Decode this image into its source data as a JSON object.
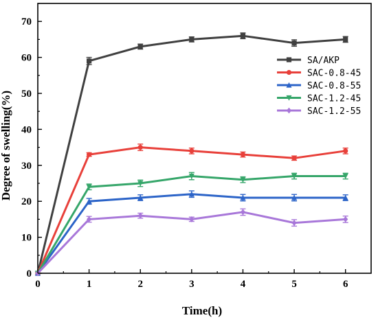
{
  "chart_data": {
    "type": "line",
    "xlabel": "Time(h)",
    "ylabel": "Degree of swelling(%)",
    "xlim": [
      0,
      6.5
    ],
    "ylim": [
      0,
      75
    ],
    "x_ticks": [
      "0",
      "1",
      "2",
      "3",
      "4",
      "5",
      "6"
    ],
    "y_ticks": [
      "0",
      "10",
      "20",
      "30",
      "40",
      "50",
      "60",
      "70"
    ],
    "x": [
      0,
      1,
      2,
      3,
      4,
      5,
      6
    ],
    "grid": false,
    "legend_position": "top-right",
    "series": [
      {
        "name": "SA/AKP",
        "color": "#404040",
        "marker": "square",
        "values": [
          0,
          59,
          63,
          65,
          66,
          64,
          65
        ],
        "errors": [
          0,
          1.0,
          0.7,
          0.7,
          0.8,
          0.9,
          0.8
        ]
      },
      {
        "name": "SAC-0.8-45",
        "color": "#e8403a",
        "marker": "circle",
        "values": [
          0,
          33,
          35,
          34,
          33,
          32,
          34
        ],
        "errors": [
          0,
          0.5,
          0.9,
          0.8,
          0.7,
          0.6,
          0.8
        ]
      },
      {
        "name": "SAC-0.8-55",
        "color": "#2c64c8",
        "marker": "triangle-up",
        "values": [
          0,
          20,
          21,
          22,
          21,
          21,
          21
        ],
        "errors": [
          0,
          0.8,
          0.8,
          0.9,
          0.9,
          0.9,
          0.8
        ]
      },
      {
        "name": "SAC-1.2-45",
        "color": "#36a66a",
        "marker": "triangle-down",
        "values": [
          0,
          24,
          25,
          27,
          26,
          27,
          27
        ],
        "errors": [
          0,
          0.8,
          0.9,
          1.0,
          0.8,
          0.8,
          0.8
        ]
      },
      {
        "name": "SAC-1.2-55",
        "color": "#a877d9",
        "marker": "diamond",
        "values": [
          0,
          15,
          16,
          15,
          17,
          14,
          15
        ],
        "errors": [
          0,
          0.8,
          0.7,
          0.6,
          0.9,
          0.9,
          0.9
        ]
      }
    ]
  }
}
